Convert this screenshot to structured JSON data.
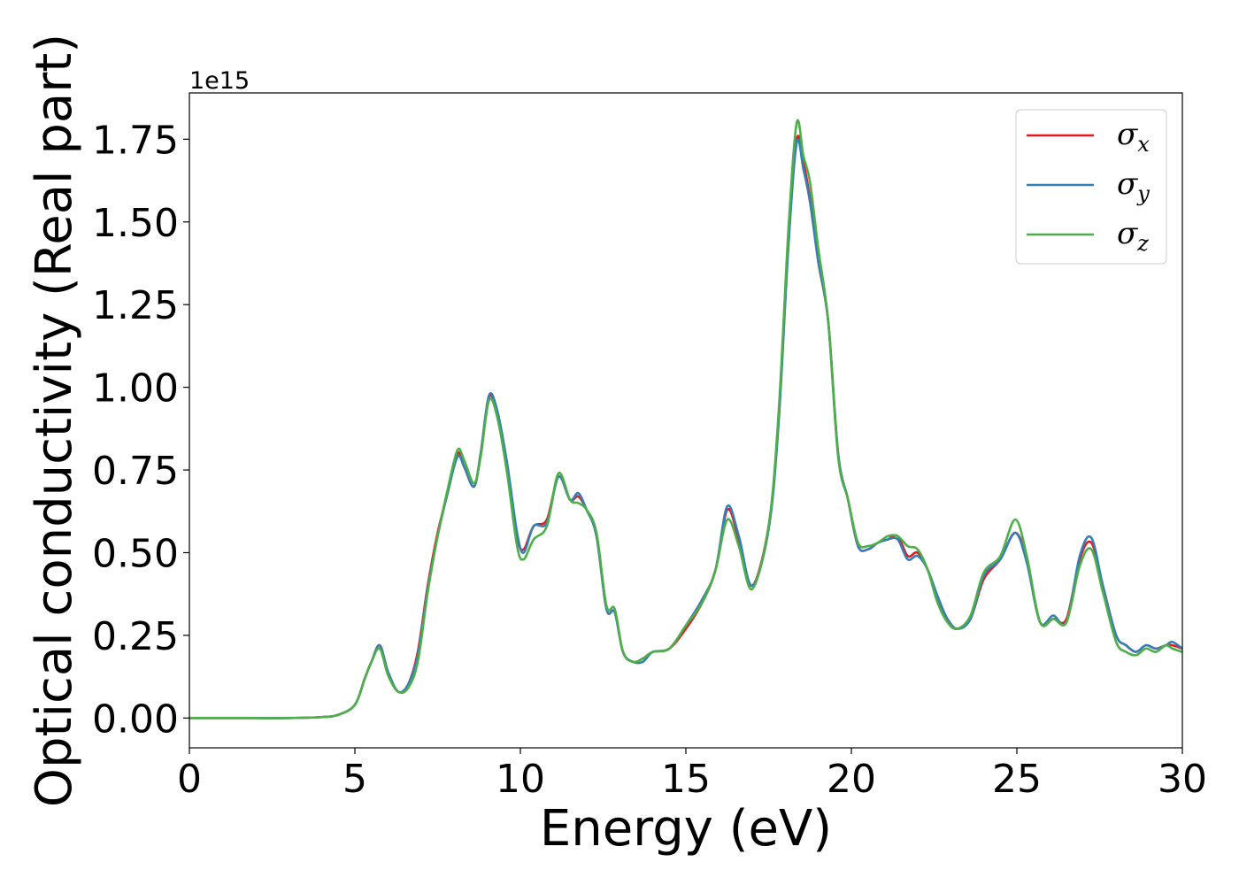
{
  "chart_data": {
    "type": "line",
    "xlabel": "Energy (eV)",
    "ylabel": "Optical conductivity (Real part)",
    "y_offset_label": "1e15",
    "y_scale": 1000000000000000.0,
    "xlim": [
      0,
      30
    ],
    "ylim": [
      -0.09,
      1.89
    ],
    "xticks": [
      0,
      5,
      10,
      15,
      20,
      25,
      30
    ],
    "xtick_labels": [
      "0",
      "5",
      "10",
      "15",
      "20",
      "25",
      "30"
    ],
    "yticks": [
      0.0,
      0.25,
      0.5,
      0.75,
      1.0,
      1.25,
      1.5,
      1.75
    ],
    "ytick_labels": [
      "0.00",
      "0.25",
      "0.50",
      "0.75",
      "1.00",
      "1.25",
      "1.50",
      "1.75"
    ],
    "grid": false,
    "legend_position": "top-right",
    "x": [
      0,
      1,
      2,
      3,
      4,
      4.5,
      5,
      5.3,
      5.5,
      5.75,
      6.0,
      6.3,
      6.6,
      6.9,
      7.2,
      7.5,
      7.8,
      8.1,
      8.3,
      8.6,
      8.8,
      9.05,
      9.3,
      9.6,
      9.9,
      10.1,
      10.4,
      10.8,
      11.15,
      11.5,
      11.75,
      12.0,
      12.3,
      12.6,
      12.85,
      13.1,
      13.4,
      13.7,
      14.0,
      14.5,
      15.0,
      15.5,
      15.9,
      16.25,
      16.6,
      17.0,
      17.5,
      17.8,
      18.1,
      18.35,
      18.55,
      18.75,
      19.0,
      19.3,
      19.6,
      19.9,
      20.2,
      20.5,
      20.8,
      21.1,
      21.4,
      21.7,
      22.0,
      22.3,
      22.6,
      22.9,
      23.2,
      23.6,
      24.0,
      24.5,
      24.95,
      25.3,
      25.7,
      26.1,
      26.5,
      26.9,
      27.25,
      27.6,
      28.0,
      28.3,
      28.6,
      28.9,
      29.2,
      29.5,
      29.7,
      30.0
    ],
    "series": [
      {
        "name": "σx",
        "label_main": "σ",
        "label_sub": "x",
        "color": "#e41a1c",
        "values": [
          0,
          0,
          0,
          0,
          0.003,
          0.01,
          0.04,
          0.12,
          0.17,
          0.22,
          0.14,
          0.08,
          0.1,
          0.2,
          0.4,
          0.56,
          0.68,
          0.8,
          0.76,
          0.7,
          0.8,
          0.97,
          0.92,
          0.76,
          0.55,
          0.51,
          0.58,
          0.6,
          0.73,
          0.66,
          0.67,
          0.63,
          0.55,
          0.33,
          0.32,
          0.2,
          0.17,
          0.18,
          0.2,
          0.21,
          0.27,
          0.35,
          0.45,
          0.63,
          0.54,
          0.4,
          0.58,
          0.9,
          1.45,
          1.75,
          1.68,
          1.57,
          1.38,
          1.2,
          0.8,
          0.66,
          0.52,
          0.51,
          0.53,
          0.54,
          0.55,
          0.49,
          0.5,
          0.45,
          0.36,
          0.3,
          0.27,
          0.3,
          0.42,
          0.48,
          0.56,
          0.48,
          0.29,
          0.3,
          0.3,
          0.48,
          0.53,
          0.4,
          0.25,
          0.22,
          0.2,
          0.22,
          0.21,
          0.22,
          0.22,
          0.21
        ]
      },
      {
        "name": "σy",
        "label_main": "σ",
        "label_sub": "y",
        "color": "#377eb8",
        "values": [
          0,
          0,
          0,
          0,
          0.003,
          0.01,
          0.04,
          0.12,
          0.17,
          0.22,
          0.14,
          0.08,
          0.1,
          0.19,
          0.39,
          0.55,
          0.68,
          0.79,
          0.76,
          0.7,
          0.8,
          0.975,
          0.93,
          0.77,
          0.56,
          0.5,
          0.58,
          0.59,
          0.73,
          0.66,
          0.68,
          0.63,
          0.55,
          0.33,
          0.32,
          0.2,
          0.17,
          0.17,
          0.2,
          0.21,
          0.28,
          0.36,
          0.45,
          0.64,
          0.55,
          0.4,
          0.57,
          0.89,
          1.43,
          1.74,
          1.66,
          1.56,
          1.38,
          1.2,
          0.8,
          0.66,
          0.52,
          0.51,
          0.53,
          0.54,
          0.54,
          0.48,
          0.49,
          0.45,
          0.37,
          0.3,
          0.27,
          0.3,
          0.43,
          0.48,
          0.56,
          0.47,
          0.29,
          0.31,
          0.29,
          0.49,
          0.545,
          0.4,
          0.25,
          0.22,
          0.2,
          0.22,
          0.21,
          0.22,
          0.23,
          0.21
        ]
      },
      {
        "name": "σz",
        "label_main": "σ",
        "label_sub": "z",
        "color": "#4daf4a",
        "values": [
          0,
          0,
          0,
          0,
          0.003,
          0.01,
          0.04,
          0.12,
          0.17,
          0.21,
          0.13,
          0.08,
          0.09,
          0.17,
          0.38,
          0.55,
          0.69,
          0.81,
          0.78,
          0.71,
          0.79,
          0.96,
          0.91,
          0.74,
          0.52,
          0.48,
          0.54,
          0.58,
          0.74,
          0.66,
          0.65,
          0.63,
          0.56,
          0.34,
          0.33,
          0.2,
          0.17,
          0.18,
          0.2,
          0.21,
          0.28,
          0.35,
          0.45,
          0.6,
          0.52,
          0.39,
          0.58,
          0.92,
          1.48,
          1.8,
          1.7,
          1.62,
          1.42,
          1.2,
          0.79,
          0.66,
          0.53,
          0.52,
          0.53,
          0.55,
          0.55,
          0.52,
          0.51,
          0.45,
          0.35,
          0.29,
          0.27,
          0.31,
          0.44,
          0.49,
          0.6,
          0.49,
          0.29,
          0.3,
          0.29,
          0.46,
          0.51,
          0.38,
          0.23,
          0.2,
          0.19,
          0.21,
          0.2,
          0.22,
          0.21,
          0.2
        ]
      }
    ]
  }
}
